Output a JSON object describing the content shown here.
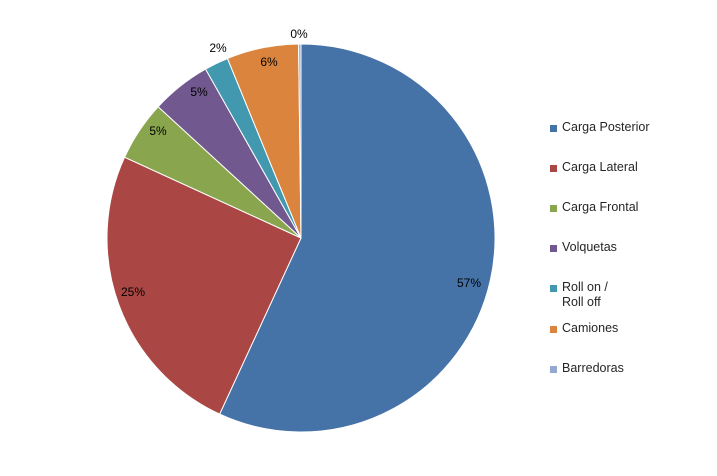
{
  "chart_data": {
    "type": "pie",
    "title": "",
    "start_angle_deg": 0,
    "direction": "clockwise",
    "legend_position": "right",
    "slices": [
      {
        "label": "Carga Posterior",
        "value": 57,
        "display": "57%",
        "color": "#4572a7"
      },
      {
        "label": "Carga Lateral",
        "value": 25,
        "display": "25%",
        "color": "#aa4643"
      },
      {
        "label": "Carga Frontal",
        "value": 5,
        "display": "5%",
        "color": "#89a54e"
      },
      {
        "label": "Volquetas",
        "value": 5,
        "display": "5%",
        "color": "#71588f"
      },
      {
        "label": "Roll on /\nRoll off",
        "value": 2,
        "display": "2%",
        "color": "#4198af"
      },
      {
        "label": "Camiones",
        "value": 6,
        "display": "6%",
        "color": "#db843d"
      },
      {
        "label": "Barredoras",
        "value": 0.2,
        "display": "0%",
        "color": "#93a9cf"
      }
    ]
  }
}
